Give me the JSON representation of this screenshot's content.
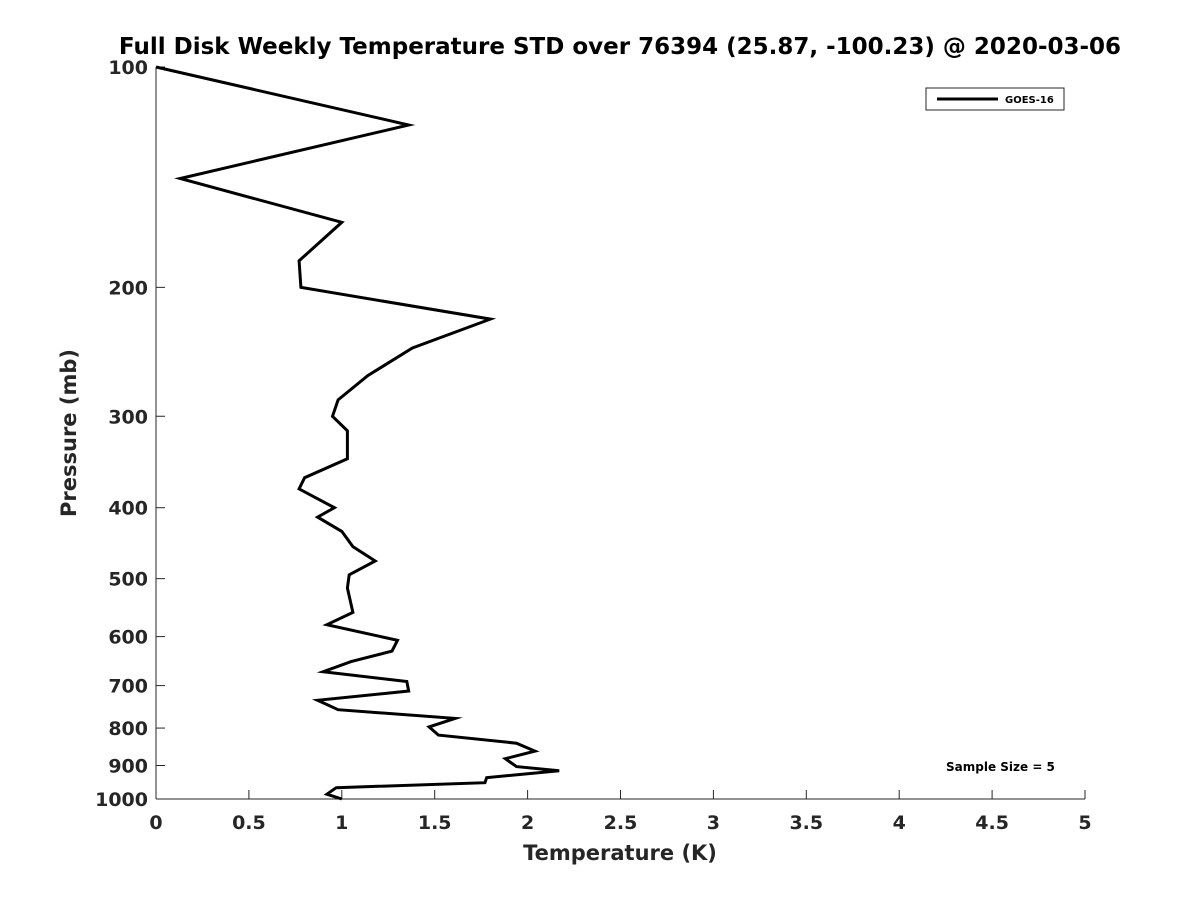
{
  "chart_data": {
    "type": "line",
    "title": "Full Disk Weekly Temperature STD over 76394 (25.87, -100.23) @ 2020-03-06",
    "xlabel": "Temperature (K)",
    "ylabel": "Pressure (mb)",
    "xlim": [
      0,
      5
    ],
    "ylim": [
      100,
      1000
    ],
    "yscale": "log",
    "y_reversed": true,
    "grid": false,
    "legend_position": "top-right",
    "x_ticks": [
      "0",
      "0.5",
      "1",
      "1.5",
      "2",
      "2.5",
      "3",
      "3.5",
      "4",
      "4.5",
      "5"
    ],
    "x_tick_values": [
      0,
      0.5,
      1,
      1.5,
      2,
      2.5,
      3,
      3.5,
      4,
      4.5,
      5
    ],
    "y_ticks": [
      "100",
      "200",
      "300",
      "400",
      "500",
      "600",
      "700",
      "800",
      "900",
      "1000"
    ],
    "y_tick_values": [
      100,
      200,
      300,
      400,
      500,
      600,
      700,
      800,
      900,
      1000
    ],
    "series": [
      {
        "name": "GOES-16",
        "color": "#000000",
        "points": [
          [
            0.0,
            100
          ],
          [
            1.36,
            120
          ],
          [
            0.13,
            142
          ],
          [
            1.0,
            163
          ],
          [
            0.77,
            184
          ],
          [
            0.78,
            200
          ],
          [
            1.8,
            221
          ],
          [
            1.38,
            242
          ],
          [
            1.14,
            264
          ],
          [
            0.98,
            285
          ],
          [
            0.95,
            300
          ],
          [
            1.03,
            314
          ],
          [
            1.03,
            343
          ],
          [
            0.8,
            364
          ],
          [
            0.77,
            377
          ],
          [
            0.96,
            400
          ],
          [
            0.87,
            412
          ],
          [
            1.0,
            431
          ],
          [
            1.06,
            452
          ],
          [
            1.18,
            473
          ],
          [
            1.04,
            494
          ],
          [
            1.03,
            515
          ],
          [
            1.06,
            556
          ],
          [
            0.92,
            578
          ],
          [
            1.3,
            607
          ],
          [
            1.27,
            628
          ],
          [
            1.05,
            649
          ],
          [
            0.9,
            670
          ],
          [
            1.35,
            691
          ],
          [
            1.36,
            712
          ],
          [
            0.87,
            733
          ],
          [
            0.98,
            755
          ],
          [
            1.61,
            776
          ],
          [
            1.47,
            797
          ],
          [
            1.52,
            818
          ],
          [
            1.94,
            839
          ],
          [
            2.04,
            860
          ],
          [
            1.88,
            881
          ],
          [
            1.94,
            903
          ],
          [
            2.17,
            915
          ],
          [
            1.78,
            935
          ],
          [
            1.77,
            950
          ],
          [
            0.97,
            965
          ],
          [
            0.92,
            985
          ],
          [
            1.0,
            1000
          ]
        ]
      }
    ],
    "annotation": "Sample Size = 5"
  }
}
